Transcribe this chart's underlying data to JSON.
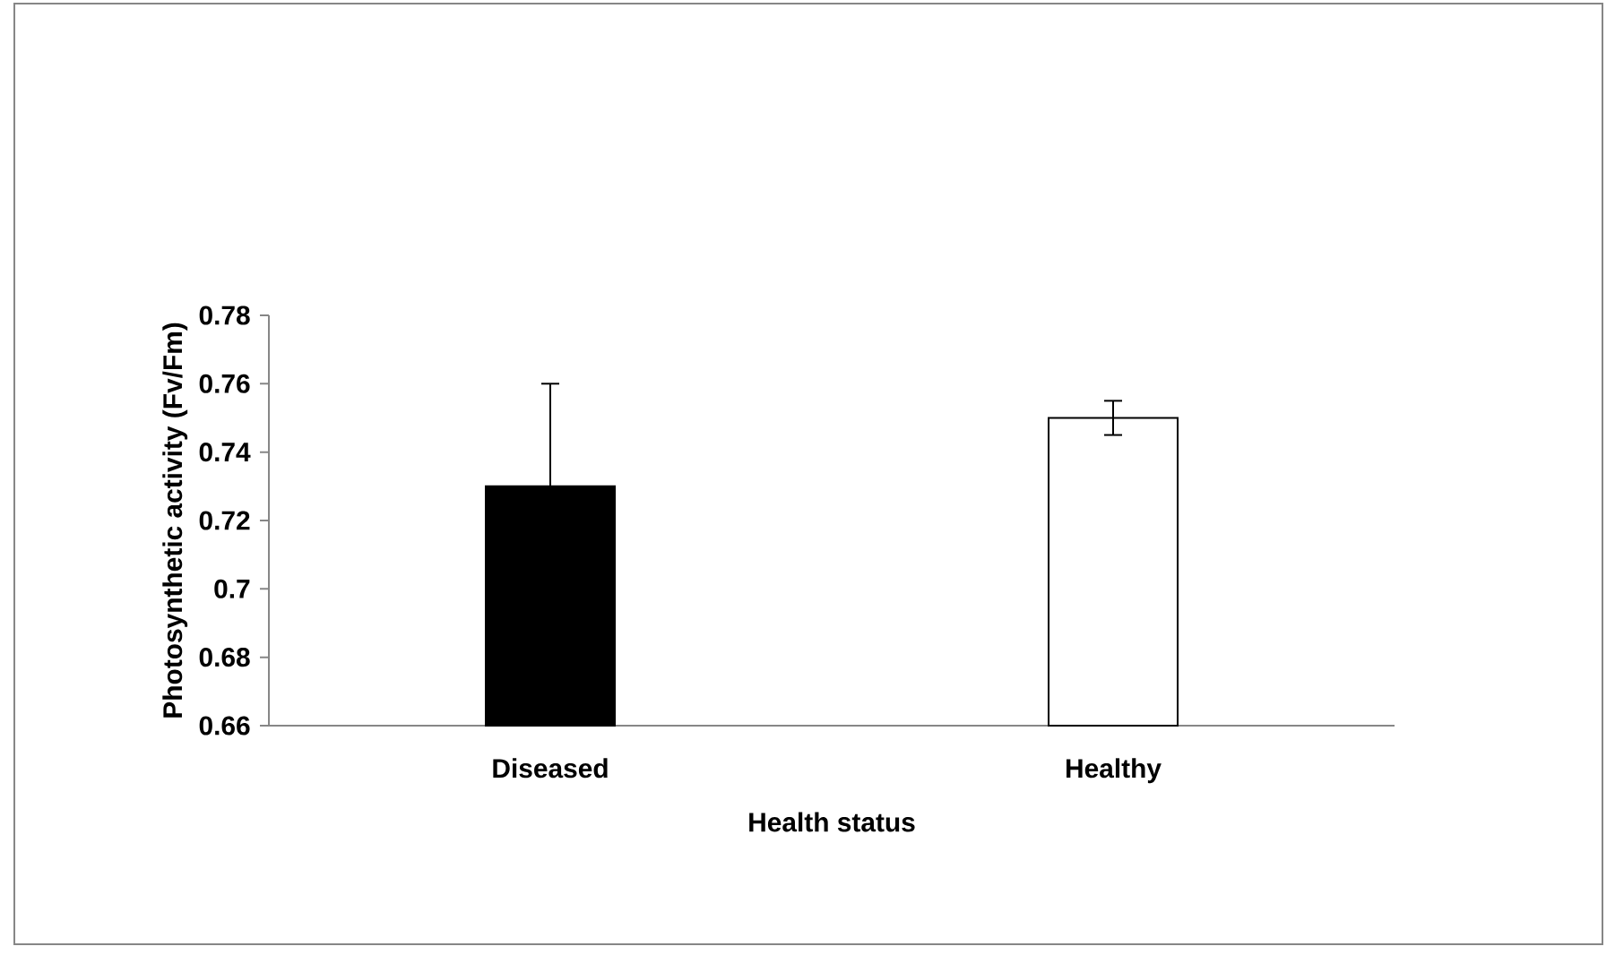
{
  "chart_data": {
    "type": "bar",
    "xlabel": "Health status",
    "ylabel": "Photosynthetic activity (Fv/Fm)",
    "categories": [
      "Diseased",
      "Healthy"
    ],
    "values": [
      0.73,
      0.75
    ],
    "colors": [
      "#000000",
      "#ffffff"
    ],
    "errors": [
      0.03,
      0.005
    ],
    "ylim": [
      0.66,
      0.78
    ],
    "yticks": [
      0.66,
      0.68,
      0.7,
      0.72,
      0.74,
      0.76,
      0.78
    ],
    "grid": false
  }
}
